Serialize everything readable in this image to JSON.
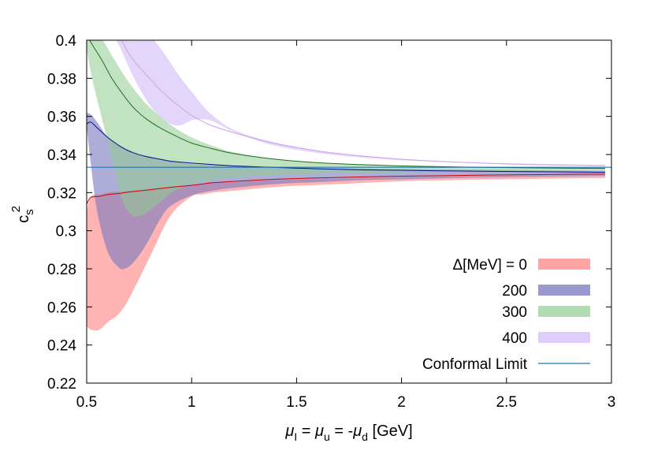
{
  "chart_data": {
    "type": "area",
    "title": "",
    "xlabel": {
      "base": "μ",
      "parts": [
        {
          "text": "μ",
          "style": "normal"
        },
        {
          "text": "I",
          "style": "sub"
        },
        {
          "text": " = ",
          "style": "normal"
        },
        {
          "text": "μ",
          "style": "normal"
        },
        {
          "text": "u",
          "style": "sub"
        },
        {
          "text": " = -",
          "style": "normal"
        },
        {
          "text": "μ",
          "style": "normal"
        },
        {
          "text": "d",
          "style": "sub"
        },
        {
          "text": " [GeV]",
          "style": "normal"
        }
      ]
    },
    "ylabel": {
      "base": "c",
      "sub": "s",
      "sup": "2"
    },
    "xlim": [
      0.5,
      3.0
    ],
    "ylim": [
      0.22,
      0.4
    ],
    "xticks": [
      0.5,
      1.0,
      1.5,
      2.0,
      2.5,
      3.0
    ],
    "xtick_labels": [
      "0.5",
      "1",
      "1.5",
      "2",
      "2.5",
      "3"
    ],
    "yticks": [
      0.22,
      0.24,
      0.26,
      0.28,
      0.3,
      0.32,
      0.34,
      0.36,
      0.38,
      0.4
    ],
    "ytick_labels": [
      "0.22",
      "0.24",
      "0.26",
      "0.28",
      "0.3",
      "0.32",
      "0.34",
      "0.36",
      "0.38",
      "0.4"
    ],
    "grid": false,
    "legend_position": "bottom-right",
    "series": [
      {
        "name": "Δ[MeV] = 0",
        "band_color": "#ff9999",
        "line_color": "#cc0000",
        "opacity": 0.75,
        "x": [
          0.5,
          0.52,
          0.56,
          0.6,
          0.65,
          0.7,
          0.8,
          0.9,
          1.0,
          1.05,
          1.1,
          1.2,
          1.4,
          1.6,
          1.8,
          2.0,
          2.2,
          2.5,
          2.8,
          2.97
        ],
        "lower": [
          0.25,
          0.248,
          0.248,
          0.252,
          0.256,
          0.264,
          0.286,
          0.308,
          0.318,
          0.319,
          0.32,
          0.321,
          0.323,
          0.324,
          0.325,
          0.326,
          0.3265,
          0.327,
          0.3275,
          0.3277
        ],
        "upper": [
          0.31,
          0.318,
          0.319,
          0.32,
          0.3205,
          0.321,
          0.322,
          0.323,
          0.324,
          0.3245,
          0.325,
          0.3255,
          0.3265,
          0.327,
          0.3275,
          0.328,
          0.3283,
          0.3287,
          0.329,
          0.3292
        ],
        "center": [
          0.314,
          0.3175,
          0.318,
          0.319,
          0.3195,
          0.3203,
          0.3215,
          0.3228,
          0.3238,
          0.3245,
          0.3252,
          0.3259,
          0.327,
          0.3277,
          0.3282,
          0.3286,
          0.3289,
          0.3293,
          0.3296,
          0.3297
        ]
      },
      {
        "name": "200",
        "band_color": "#7b7bbf",
        "line_color": "#0a0a8a",
        "opacity": 0.62,
        "x": [
          0.5,
          0.52,
          0.55,
          0.6,
          0.65,
          0.68,
          0.72,
          0.78,
          0.85,
          0.9,
          1.0,
          1.1,
          1.2,
          1.4,
          1.6,
          1.8,
          2.0,
          2.3,
          2.6,
          2.97
        ],
        "lower": [
          0.355,
          0.335,
          0.31,
          0.289,
          0.281,
          0.28,
          0.283,
          0.292,
          0.306,
          0.313,
          0.3185,
          0.321,
          0.3225,
          0.3245,
          0.3255,
          0.3265,
          0.327,
          0.3278,
          0.3283,
          0.3288
        ],
        "upper": [
          0.362,
          0.361,
          0.357,
          0.349,
          0.345,
          0.343,
          0.341,
          0.339,
          0.3375,
          0.3365,
          0.335,
          0.3345,
          0.334,
          0.3335,
          0.333,
          0.3327,
          0.3324,
          0.3321,
          0.3318,
          0.3315
        ],
        "center": [
          0.356,
          0.357,
          0.354,
          0.349,
          0.345,
          0.343,
          0.341,
          0.339,
          0.3375,
          0.3365,
          0.3355,
          0.3347,
          0.334,
          0.3332,
          0.3325,
          0.332,
          0.3317,
          0.3313,
          0.331,
          0.3307
        ]
      },
      {
        "name": "300",
        "band_color": "#90cc90",
        "line_color": "#1f6e1f",
        "opacity": 0.55,
        "x": [
          0.5,
          0.53,
          0.57,
          0.62,
          0.67,
          0.72,
          0.78,
          0.85,
          0.92,
          1.0,
          1.1,
          1.2,
          1.4,
          1.6,
          1.8,
          2.0,
          2.3,
          2.6,
          2.97
        ],
        "lower": [
          0.395,
          0.378,
          0.36,
          0.338,
          0.316,
          0.308,
          0.309,
          0.315,
          0.321,
          0.3245,
          0.3265,
          0.3278,
          0.329,
          0.3298,
          0.3303,
          0.3306,
          0.331,
          0.3313,
          0.3316
        ],
        "upper": [
          0.404,
          0.404,
          0.401,
          0.392,
          0.383,
          0.375,
          0.367,
          0.36,
          0.354,
          0.349,
          0.3445,
          0.3412,
          0.3375,
          0.3357,
          0.3348,
          0.3342,
          0.3337,
          0.3334,
          0.3331
        ],
        "center": [
          0.403,
          0.397,
          0.39,
          0.38,
          0.372,
          0.365,
          0.359,
          0.354,
          0.35,
          0.346,
          0.343,
          0.3405,
          0.3375,
          0.3357,
          0.3347,
          0.334,
          0.3334,
          0.333,
          0.3327
        ]
      },
      {
        "name": "400",
        "band_color": "#d9c4fa",
        "line_color": "#c9a3ea",
        "opacity": 0.7,
        "x": [
          0.62,
          0.66,
          0.7,
          0.75,
          0.8,
          0.85,
          0.9,
          0.95,
          1.0,
          1.05,
          1.1,
          1.2,
          1.35,
          1.5,
          1.7,
          2.0,
          2.3,
          2.6,
          2.97
        ],
        "lower": [
          0.404,
          0.396,
          0.386,
          0.375,
          0.366,
          0.36,
          0.356,
          0.3555,
          0.358,
          0.3585,
          0.3575,
          0.352,
          0.346,
          0.3425,
          0.3395,
          0.337,
          0.3357,
          0.3348,
          0.334
        ],
        "upper": [
          0.404,
          0.404,
          0.404,
          0.404,
          0.402,
          0.396,
          0.388,
          0.38,
          0.373,
          0.366,
          0.3605,
          0.353,
          0.3475,
          0.344,
          0.3405,
          0.3375,
          0.336,
          0.3352,
          0.3345
        ],
        "center": [
          0.404,
          0.401,
          0.393,
          0.386,
          0.38,
          0.374,
          0.369,
          0.3645,
          0.3605,
          0.3575,
          0.355,
          0.3515,
          0.347,
          0.3437,
          0.3405,
          0.3375,
          0.3358,
          0.3348,
          0.3341
        ]
      }
    ],
    "reference_line": {
      "name": "Conformal Limit",
      "value": 0.3333,
      "color": "#1f78b4"
    }
  }
}
